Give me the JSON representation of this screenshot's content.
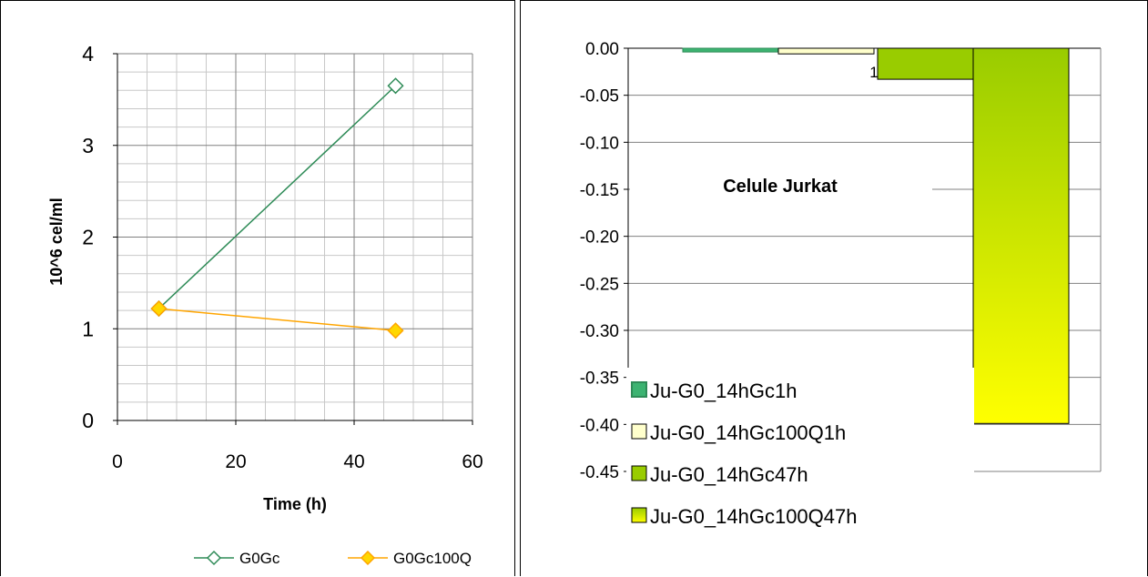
{
  "charts": [
    {
      "chart_data": {
        "type": "line",
        "xlabel": "Time (h)",
        "ylabel": "10^6 cel/ml",
        "xlim": [
          0,
          60
        ],
        "ylim": [
          0,
          4
        ],
        "x_ticks": [
          0,
          20,
          40,
          60
        ],
        "y_ticks": [
          0,
          1,
          2,
          3,
          4
        ],
        "grid": true,
        "legend_position": "bottom",
        "series": [
          {
            "name": "G0Gc",
            "x": [
              7,
              47
            ],
            "y": [
              1.22,
              3.65
            ],
            "color": "#2e8b57",
            "marker": "diamond",
            "marker_fill": "#ffffff"
          },
          {
            "name": "G0Gc100Q",
            "x": [
              7,
              47
            ],
            "y": [
              1.22,
              0.98
            ],
            "color": "#ffa500",
            "marker": "diamond",
            "marker_fill": "#ffd700"
          }
        ]
      }
    },
    {
      "chart_data": {
        "type": "bar",
        "title": "Celule Jurkat",
        "ylim": [
          -0.45,
          0.0
        ],
        "y_ticks": [
          "0.00",
          "-0.05",
          "-0.10",
          "-0.15",
          "-0.20",
          "-0.25",
          "-0.30",
          "-0.35",
          "-0.40",
          "-0.45"
        ],
        "grid": true,
        "legend_position": "bottom-left",
        "series": [
          {
            "name": "Ju-G0_14hGc1h",
            "value": -0.004,
            "color": "#3cb371",
            "border": "#2e8b57"
          },
          {
            "name": "Ju-G0_14hGc100Q1h",
            "value": -0.006,
            "color": "#ffffcc",
            "border": "#000000"
          },
          {
            "name": "Ju-G0_14hGc47h",
            "value": -0.033,
            "color": "#99cc00",
            "border": "#000000"
          },
          {
            "name": "Ju-G0_14hGc100Q47h",
            "value": -0.399,
            "color": "#ffff00",
            "border": "#000000"
          }
        ],
        "data_labels": [
          {
            "text": "1"
          }
        ]
      }
    }
  ]
}
